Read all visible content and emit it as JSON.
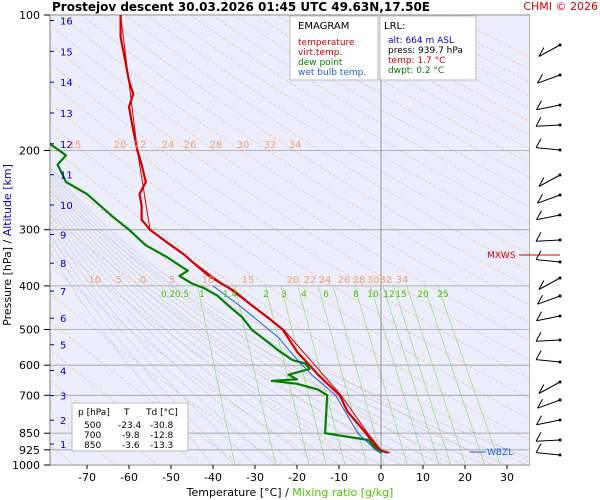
{
  "header": {
    "title": "Prostejov   descent   30.03.2026 01:45 UTC  49.63N,17.50E",
    "credit": "CHMI © 2026"
  },
  "legend": {
    "heading": "EMAGRAM",
    "items": [
      {
        "label": "temperature",
        "color": "#d00000"
      },
      {
        "label": "virt.temp.",
        "color": "#d00000"
      },
      {
        "label": "dew point",
        "color": "#008000"
      },
      {
        "label": "wet bulb temp.",
        "color": "#2060d0"
      }
    ]
  },
  "lrl": {
    "heading": "LRL:",
    "lines": [
      {
        "text": "alt: 664 m ASL",
        "color": "#0000c0"
      },
      {
        "text": "press: 939.7 hPa",
        "color": "#000000"
      },
      {
        "text": "temp: 1.7 °C",
        "color": "#d00000"
      },
      {
        "text": "dwpt: 0.2 °C",
        "color": "#008000"
      }
    ]
  },
  "table": {
    "headers": [
      "p [hPa]",
      "T",
      "Td [°C]"
    ],
    "rows": [
      [
        "500",
        "-23.4",
        "-30.8"
      ],
      [
        "700",
        "-9.8",
        "-12.8"
      ],
      [
        "850",
        "-3.6",
        "-13.3"
      ]
    ]
  },
  "markers": {
    "mxws": "MXWS",
    "wbzl": "WBZL"
  },
  "axes": {
    "y_label_pressure": "Pressure [hPa]",
    "y_label_sep": " / ",
    "y_label_altitude": "Altitude [km]",
    "x_label_temp": "Temperature [°C]",
    "x_label_sep": " / ",
    "x_label_mixing": "Mixing ratio [g/kg]",
    "pressure_ticks": [
      "100",
      "200",
      "300",
      "400",
      "500",
      "600",
      "700",
      "850",
      "925",
      "1000"
    ],
    "pressure_values": [
      100,
      200,
      300,
      400,
      500,
      600,
      700,
      850,
      925,
      1000
    ],
    "temp_ticks": [
      "-70",
      "-60",
      "-50",
      "-40",
      "-30",
      "-20",
      "-10",
      "0",
      "10",
      "20",
      "30"
    ],
    "temp_values": [
      -70,
      -60,
      -50,
      -40,
      -30,
      -20,
      -10,
      0,
      10,
      20,
      30
    ],
    "alt_ticks": [
      "1",
      "2",
      "3",
      "4",
      "5",
      "6",
      "7",
      "8",
      "9",
      "10",
      "11",
      "12",
      "13",
      "14",
      "15",
      "16"
    ],
    "mixing_labels": [
      "0.2",
      "0.5",
      "1",
      "1.4",
      "2",
      "3",
      "4",
      "6",
      "8",
      "10",
      "12",
      "15",
      "20",
      "25"
    ],
    "upper_theta_labels": [
      "15",
      "20",
      "22",
      "24",
      "26",
      "28",
      "30",
      "32",
      "34"
    ],
    "lower_theta_labels": [
      "-10",
      "-5",
      "0",
      "5",
      "10",
      "15",
      "20",
      "22",
      "24",
      "26",
      "28",
      "30",
      "32",
      "34"
    ]
  },
  "chart_data": {
    "type": "line",
    "xlabel": "Temperature [°C] / Mixing ratio [g/kg]",
    "ylabel": "Pressure [hPa] / Altitude [km]",
    "xlim": [
      -80,
      35
    ],
    "ylim": [
      1000,
      100
    ],
    "y_scale": "log",
    "grid": true,
    "series": [
      {
        "name": "temperature",
        "color": "#d00000",
        "points": [
          [
            1.7,
            939.7
          ],
          [
            -0.5,
            925
          ],
          [
            -3.6,
            850
          ],
          [
            -5,
            820
          ],
          [
            -6.5,
            790
          ],
          [
            -8,
            760
          ],
          [
            -9.8,
            700
          ],
          [
            -12,
            670
          ],
          [
            -15,
            630
          ],
          [
            -17,
            600
          ],
          [
            -20,
            560
          ],
          [
            -23.4,
            500
          ],
          [
            -27,
            470
          ],
          [
            -31,
            440
          ],
          [
            -35,
            410
          ],
          [
            -38,
            395
          ],
          [
            -41,
            380
          ],
          [
            -44,
            360
          ],
          [
            -47,
            340
          ],
          [
            -51,
            320
          ],
          [
            -55,
            300
          ],
          [
            -57,
            285
          ],
          [
            -57,
            265
          ],
          [
            -57.5,
            250
          ],
          [
            -56,
            235
          ],
          [
            -57,
            215
          ],
          [
            -58,
            200
          ],
          [
            -59,
            180
          ],
          [
            -60,
            160
          ],
          [
            -59,
            150
          ],
          [
            -60,
            140
          ],
          [
            -61,
            125
          ],
          [
            -62,
            112
          ],
          [
            -62,
            100
          ]
        ]
      },
      {
        "name": "virt.temp.",
        "color": "#d00000",
        "points": [
          [
            2.2,
            939.7
          ],
          [
            0,
            925
          ],
          [
            -3.2,
            850
          ],
          [
            -9.5,
            700
          ],
          [
            -23.2,
            500
          ],
          [
            -55,
            300
          ],
          [
            -58,
            200
          ],
          [
            -62,
            100
          ]
        ]
      },
      {
        "name": "dew point",
        "color": "#008000",
        "points": [
          [
            0.2,
            939.7
          ],
          [
            -1,
            925
          ],
          [
            -3,
            880
          ],
          [
            -13.3,
            850
          ],
          [
            -12.8,
            700
          ],
          [
            -15,
            680
          ],
          [
            -20,
            660
          ],
          [
            -26,
            650
          ],
          [
            -20,
            645
          ],
          [
            -22,
            630
          ],
          [
            -17,
            612
          ],
          [
            -18,
            595
          ],
          [
            -21,
            585
          ],
          [
            -24,
            560
          ],
          [
            -30.8,
            500
          ],
          [
            -33,
            470
          ],
          [
            -36,
            445
          ],
          [
            -39,
            420
          ],
          [
            -42,
            405
          ],
          [
            -45,
            395
          ],
          [
            -48,
            380
          ],
          [
            -46,
            370
          ],
          [
            -48,
            360
          ],
          [
            -51,
            345
          ],
          [
            -56,
            325
          ],
          [
            -60,
            300
          ],
          [
            -64,
            280
          ],
          [
            -70,
            250
          ],
          [
            -75,
            235
          ],
          [
            -77,
            215
          ],
          [
            -75,
            205
          ],
          [
            -80,
            190
          ]
        ]
      },
      {
        "name": "wet bulb temp.",
        "color": "#2060d0",
        "points": [
          [
            1.0,
            939.7
          ],
          [
            -1.3,
            925
          ],
          [
            -5.5,
            850
          ],
          [
            -10.8,
            700
          ],
          [
            -16.5,
            630
          ],
          [
            -19.5,
            590
          ],
          [
            -24.5,
            520
          ],
          [
            -29,
            480
          ],
          [
            -34,
            440
          ],
          [
            -40,
            400
          ]
        ]
      }
    ]
  }
}
